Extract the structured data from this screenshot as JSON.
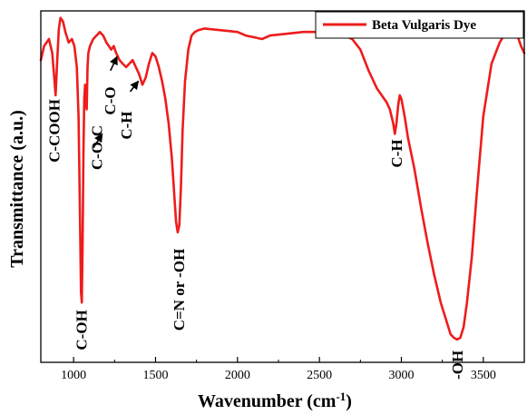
{
  "chart_data": {
    "type": "line",
    "xlabel": "Wavenumber (cm",
    "xlabel_sup": "-1",
    "xlabel_close": ")",
    "ylabel": "Transmittance (a.u.)",
    "xlim": [
      800,
      3750
    ],
    "ylim": [
      0,
      100
    ],
    "x_ticks": [
      1000,
      1500,
      2000,
      2500,
      3000,
      3500
    ],
    "y_ticks_shown": false,
    "legend_position": "top-right",
    "series": [
      {
        "name": "Beta Vulgaris Dye",
        "color": "#ee1c1c",
        "x": [
          800,
          820,
          850,
          870,
          880,
          890,
          900,
          910,
          920,
          935,
          950,
          970,
          990,
          1005,
          1020,
          1030,
          1038,
          1045,
          1050,
          1055,
          1060,
          1065,
          1070,
          1075,
          1080,
          1085,
          1090,
          1100,
          1110,
          1120,
          1140,
          1160,
          1180,
          1200,
          1215,
          1230,
          1245,
          1260,
          1270,
          1280,
          1300,
          1320,
          1340,
          1360,
          1380,
          1400,
          1420,
          1440,
          1460,
          1480,
          1500,
          1520,
          1540,
          1560,
          1580,
          1600,
          1615,
          1625,
          1635,
          1645,
          1655,
          1665,
          1680,
          1700,
          1720,
          1740,
          1760,
          1800,
          1900,
          2000,
          2050,
          2100,
          2150,
          2200,
          2300,
          2400,
          2500,
          2600,
          2650,
          2700,
          2750,
          2800,
          2850,
          2880,
          2910,
          2930,
          2950,
          2960,
          2970,
          2980,
          2990,
          3000,
          3020,
          3040,
          3080,
          3120,
          3160,
          3200,
          3240,
          3280,
          3300,
          3320,
          3340,
          3360,
          3380,
          3400,
          3430,
          3460,
          3500,
          3550,
          3600,
          3650,
          3700,
          3730,
          3750
        ],
        "values": [
          86,
          90,
          92,
          88,
          82,
          76,
          86,
          95,
          98,
          97,
          94,
          91,
          92,
          90,
          84,
          70,
          45,
          20,
          17,
          35,
          60,
          75,
          79,
          74,
          72,
          84,
          88,
          90,
          91,
          92,
          93,
          94,
          93,
          91,
          90,
          89,
          90,
          88,
          87,
          86,
          85,
          84,
          85,
          86,
          84,
          82,
          79,
          81,
          85,
          88,
          87,
          84,
          80,
          75,
          68,
          58,
          47,
          40,
          37,
          39,
          50,
          66,
          80,
          89,
          93,
          94,
          94.5,
          95,
          94.5,
          94,
          93,
          92.5,
          92,
          93,
          93.5,
          94,
          94,
          93.5,
          93,
          92,
          89,
          83,
          78,
          76,
          74,
          72,
          68,
          65,
          68,
          73,
          76,
          75,
          70,
          64,
          55,
          44,
          34,
          25,
          17,
          11,
          8,
          7,
          6.5,
          7,
          10,
          17,
          30,
          48,
          70,
          85,
          91,
          95,
          94,
          90,
          88
        ]
      }
    ],
    "annotations": [
      {
        "text": "C-COOH",
        "x": 880,
        "y": 77,
        "rotate": -90
      },
      {
        "text": "C-OH",
        "x": 1045,
        "y": 17,
        "rotate": -90
      },
      {
        "text": "C-O-C",
        "x": 1140,
        "y": 69,
        "rotate": -90
      },
      {
        "text": "C-O",
        "x": 1220,
        "y": 80,
        "rotate": -90
      },
      {
        "text": "C-H",
        "x": 1320,
        "y": 73,
        "rotate": -90
      },
      {
        "text": "C=N or -OH",
        "x": 1640,
        "y": 36,
        "rotate": -90
      },
      {
        "text": "C-H",
        "x": 2970,
        "y": 65,
        "rotate": -90
      },
      {
        "text": "-OH",
        "x": 3340,
        "y": 6,
        "rotate": -90
      }
    ]
  }
}
